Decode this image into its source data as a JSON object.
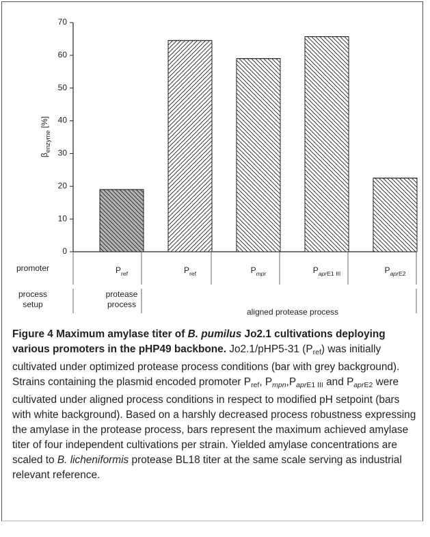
{
  "chart_data": {
    "type": "bar",
    "y_label": [
      {
        "t": "β"
      },
      {
        "t": "enzyme",
        "s": "sub"
      },
      {
        "t": " [%]"
      }
    ],
    "categories": [
      [
        {
          "t": "P"
        },
        {
          "t": "ref",
          "s": "sub"
        }
      ],
      [
        {
          "t": "P"
        },
        {
          "t": "ref",
          "s": "sub"
        }
      ],
      [
        {
          "t": "P"
        },
        {
          "t": "mpr",
          "s": "subi"
        }
      ],
      [
        {
          "t": "P"
        },
        {
          "t": "apr",
          "s": "subi"
        },
        {
          "t": "E1 III",
          "s": "sub"
        }
      ],
      [
        {
          "t": "P"
        },
        {
          "t": "apr",
          "s": "subi"
        },
        {
          "t": "E2",
          "s": "sub"
        }
      ]
    ],
    "values": [
      19,
      64.5,
      59,
      65.7,
      22.5
    ],
    "colors": [
      "#b4b4b4",
      "#ffffff",
      "#ffffff",
      "#ffffff",
      "#ffffff"
    ],
    "hatches": [
      "back",
      "forward",
      "back",
      "back",
      "back"
    ],
    "ylim": [
      0,
      70
    ],
    "yticks": [
      0,
      10,
      20,
      30,
      40,
      50,
      60,
      70
    ],
    "row_labels": [
      [
        "promoter"
      ],
      [
        "process",
        "setup"
      ]
    ],
    "groups": [
      [
        "protease",
        "process"
      ],
      [
        "aligned protease process"
      ]
    ],
    "caption": [
      {
        "t": "Figure 4 Maximum amylase titer of ",
        "s": "b"
      },
      {
        "t": "B. pumilus",
        "s": "bi"
      },
      {
        "t": " Jo2.1 cultivations deploying various promoters in the pHP49 backbone.",
        "s": "b"
      },
      {
        "t": " Jo2.1/pHP5-31 (P",
        "s": "n"
      },
      {
        "t": "ref",
        "s": "sub"
      },
      {
        "t": ") was initially cultivated under optimized protease process conditions (bar with grey background). Strains containing the plasmid encoded promoter P",
        "s": "n"
      },
      {
        "t": "ref",
        "s": "sub"
      },
      {
        "t": ", P",
        "s": "n"
      },
      {
        "t": "mpn",
        "s": "subi"
      },
      {
        "t": ",P",
        "s": "n"
      },
      {
        "t": "apr",
        "s": "subi"
      },
      {
        "t": "E1 III",
        "s": "sub"
      },
      {
        "t": " and P",
        "s": "n"
      },
      {
        "t": "apr",
        "s": "subi"
      },
      {
        "t": "E2",
        "s": "sub"
      },
      {
        "t": " were cultivated under aligned process conditions in respect to modified pH setpoint (bars with white background). Based on a harshly decreased process robustness expressing the amylase in the protease process, bars represent the maximum achieved amylase titer of four independent cultivations per strain. Yielded amylase concentrations are scaled to ",
        "s": "n"
      },
      {
        "t": "B. licheniformis",
        "s": "i"
      },
      {
        "t": " protease BL18 titer at the same scale serving as industrial relevant reference.",
        "s": "n"
      }
    ]
  }
}
